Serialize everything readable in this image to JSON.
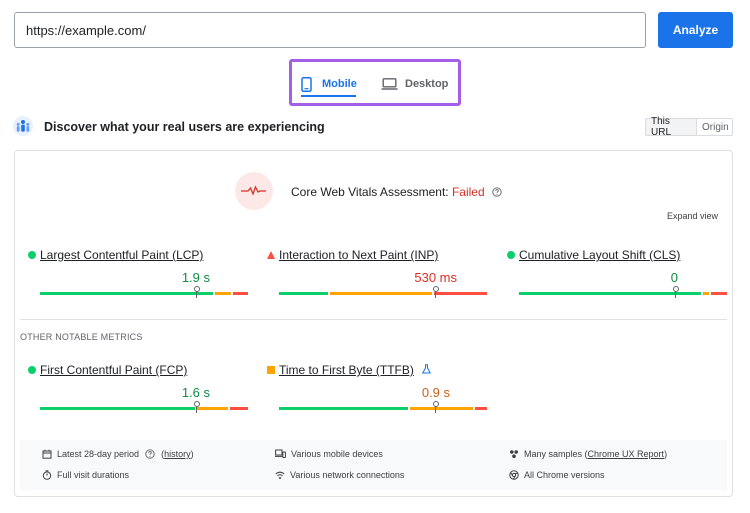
{
  "header": {
    "url_value": "https://example.com/",
    "analyze_label": "Analyze"
  },
  "device_tabs": {
    "mobile_label": "Mobile",
    "desktop_label": "Desktop",
    "selected": "Mobile"
  },
  "discover": {
    "title": "Discover what your real users are experiencing",
    "toggle": {
      "this_url": "This URL",
      "origin": "Origin",
      "selected": "This URL"
    }
  },
  "assessment": {
    "prefix": "Core Web Vitals Assessment: ",
    "status": "Failed",
    "expand_label": "Expand view"
  },
  "core_metrics": [
    {
      "label": "Largest Contentful Paint (LCP)",
      "value": "1.9 s",
      "status": "good",
      "value_color": "#0d8a41",
      "distribution": [
        0.847,
        0.077,
        0.076
      ],
      "marker": 0.75
    },
    {
      "label": "Interaction to Next Paint (INP)",
      "value": "530 ms",
      "status": "poor",
      "value_color": "#d93025",
      "distribution": [
        0.24,
        0.5,
        0.26
      ],
      "marker": 0.75
    },
    {
      "label": "Cumulative Layout Shift (CLS)",
      "value": "0",
      "status": "good",
      "value_color": "#0d8a41",
      "distribution": [
        0.89,
        0.03,
        0.08
      ],
      "marker": 0.75
    }
  ],
  "notable": {
    "heading": "OTHER NOTABLE METRICS",
    "metrics": [
      {
        "label": "First Contentful Paint (FCP)",
        "value": "1.6 s",
        "status": "good",
        "value_color": "#0d8a41",
        "distribution": [
          0.76,
          0.15,
          0.09
        ],
        "marker": 0.75
      },
      {
        "label": "Time to First Byte (TTFB)",
        "value": "0.9 s",
        "status": "needs-improvement",
        "value_color": "#c5601a",
        "distribution": [
          0.63,
          0.31,
          0.06
        ],
        "marker": 0.75
      }
    ]
  },
  "footer": {
    "period": "Latest 28-day period",
    "history_link": "history",
    "visit": "Full visit durations",
    "devices": "Various mobile devices",
    "network": "Various network connections",
    "samples_prefix": "Many samples (",
    "samples_link": "Chrome UX Report",
    "samples_suffix": ")",
    "chrome": "All Chrome versions"
  },
  "colors": {
    "accent": "#1a73e8",
    "highlight_border": "#a45ee8",
    "good": "#0cce6b",
    "average": "#ffa400",
    "poor": "#ff4e42"
  }
}
